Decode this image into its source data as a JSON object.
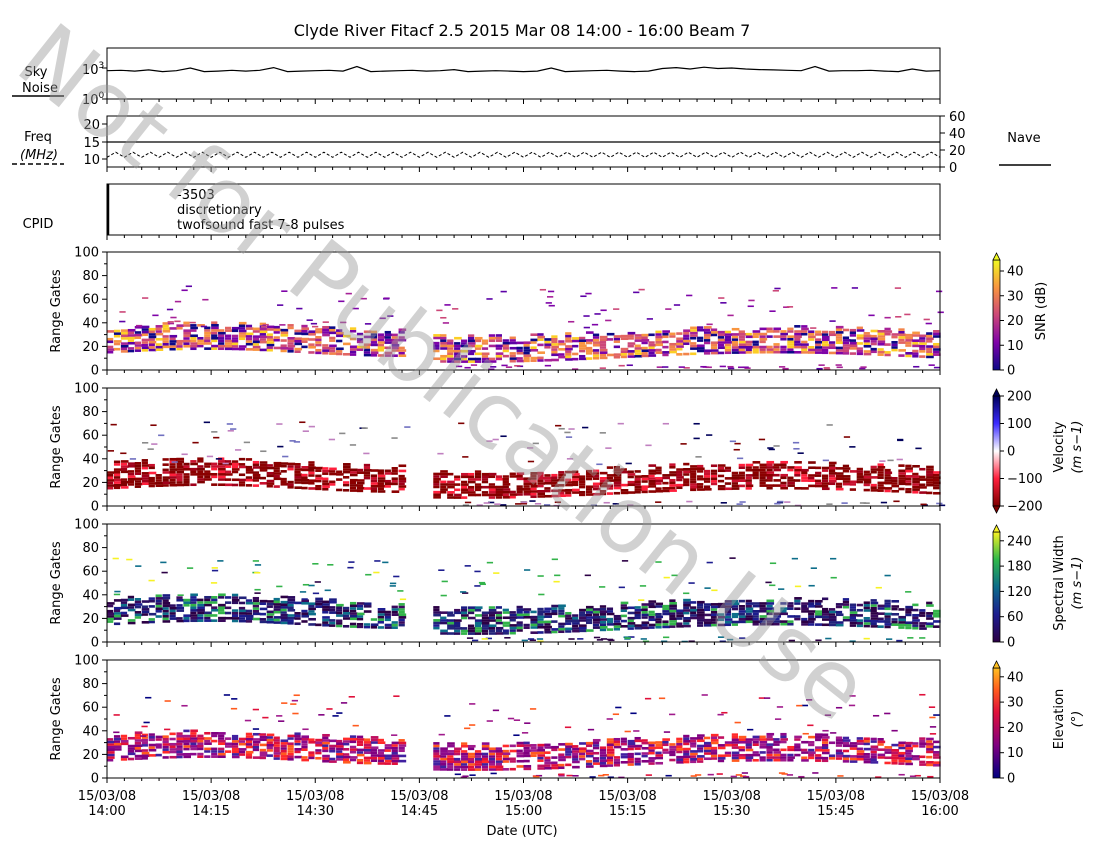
{
  "figure": {
    "title": "Clyde River Fitacf 2.5 2015 Mar 08 14:00 - 16:00  Beam 7",
    "watermark": "Not for Publication Use",
    "xlabel": "Date (UTC)",
    "x_ticks": [
      {
        "date": "15/03/08",
        "time": "14:00"
      },
      {
        "date": "15/03/08",
        "time": "14:15"
      },
      {
        "date": "15/03/08",
        "time": "14:30"
      },
      {
        "date": "15/03/08",
        "time": "14:45"
      },
      {
        "date": "15/03/08",
        "time": "15:00"
      },
      {
        "date": "15/03/08",
        "time": "15:15"
      },
      {
        "date": "15/03/08",
        "time": "15:30"
      },
      {
        "date": "15/03/08",
        "time": "15:45"
      },
      {
        "date": "15/03/08",
        "time": "16:00"
      }
    ]
  },
  "skynoise": {
    "label_line1": "Sky",
    "label_line2": "Noise",
    "yticks": [
      {
        "base": "10",
        "exp": "0"
      },
      {
        "base": "10",
        "exp": "3"
      }
    ]
  },
  "freq": {
    "label_line1": "Freq",
    "label_line2": "(MHz)",
    "yticks_left": [
      "10",
      "15",
      "20"
    ],
    "yticks_right": [
      "0",
      "20",
      "40",
      "60"
    ],
    "nave_label": "Nave"
  },
  "cpid": {
    "label": "CPID",
    "line1": "-3503",
    "line2": "discretionary",
    "line3": "twofsound fast 7-8 pulses"
  },
  "panels": [
    {
      "key": "snr",
      "cbar_label": "SNR (dB)",
      "cbar_ticks": [
        "0",
        "10",
        "20",
        "30",
        "40"
      ]
    },
    {
      "key": "vel",
      "cbar_label_line1": "Velocity",
      "cbar_label_line2": "(m s−1)",
      "cbar_ticks": [
        "−200",
        "−100",
        "0",
        "100",
        "200"
      ]
    },
    {
      "key": "width",
      "cbar_label_line1": "Spectral Width",
      "cbar_label_line2": "(m s−1)",
      "cbar_ticks": [
        "0",
        "60",
        "120",
        "180",
        "240"
      ]
    },
    {
      "key": "elev",
      "cbar_label_line1": "Elevation",
      "cbar_label_line2": "(°)",
      "cbar_ticks": [
        "0",
        "10",
        "20",
        "30",
        "40"
      ]
    }
  ],
  "range_axis": {
    "ylabel": "Range Gates",
    "yticks": [
      "0",
      "20",
      "40",
      "60",
      "80",
      "100"
    ]
  },
  "chart_data": [
    {
      "type": "line",
      "name": "skynoise",
      "x_unit": "minutes after 14:00 UTC",
      "ylog": true,
      "ylim": [
        1,
        100000
      ],
      "x": [
        0,
        2,
        4,
        6,
        8,
        10,
        12,
        14,
        16,
        18,
        20,
        22,
        24,
        26,
        28,
        30,
        32,
        34,
        36,
        38,
        40,
        42,
        44,
        46,
        48,
        50,
        52,
        54,
        56,
        58,
        60,
        62,
        64,
        66,
        68,
        70,
        72,
        74,
        76,
        78,
        80,
        82,
        84,
        86,
        88,
        90,
        92,
        94,
        96,
        98,
        100,
        102,
        104,
        106,
        108,
        110,
        112,
        114,
        116,
        118,
        120
      ],
      "values": [
        550,
        600,
        500,
        650,
        450,
        550,
        1000,
        450,
        500,
        600,
        500,
        600,
        1100,
        450,
        500,
        550,
        600,
        500,
        1400,
        450,
        500,
        550,
        600,
        500,
        550,
        700,
        450,
        500,
        550,
        500,
        450,
        500,
        1000,
        450,
        500,
        550,
        600,
        500,
        450,
        500,
        900,
        1100,
        800,
        1200,
        900,
        1000,
        800,
        700,
        650,
        600,
        550,
        1400,
        500,
        550,
        550,
        600,
        500,
        450,
        800,
        500,
        550
      ]
    },
    {
      "type": "line",
      "name": "frequency",
      "x_unit": "minutes after 14:00 UTC",
      "ylim": [
        8,
        22
      ],
      "note": "alternating sounding frequency between ~10.5 and ~12 MHz with constant line at 15 MHz",
      "values": {
        "constant": 15,
        "low": 10.5,
        "high": 12
      }
    },
    {
      "type": "heatmap",
      "name": "range-time parameters",
      "x_range": [
        0,
        120
      ],
      "y_range": [
        0,
        100
      ],
      "bands": [
        {
          "t_start": 0,
          "t_end": 43,
          "gate_low": 14,
          "gate_high": 34
        },
        {
          "t_start": 43,
          "t_end": 47,
          "gate_low": 0,
          "gate_high": 0
        },
        {
          "t_start": 47,
          "t_end": 120,
          "gate_low": 10,
          "gate_high": 30
        }
      ]
    }
  ]
}
